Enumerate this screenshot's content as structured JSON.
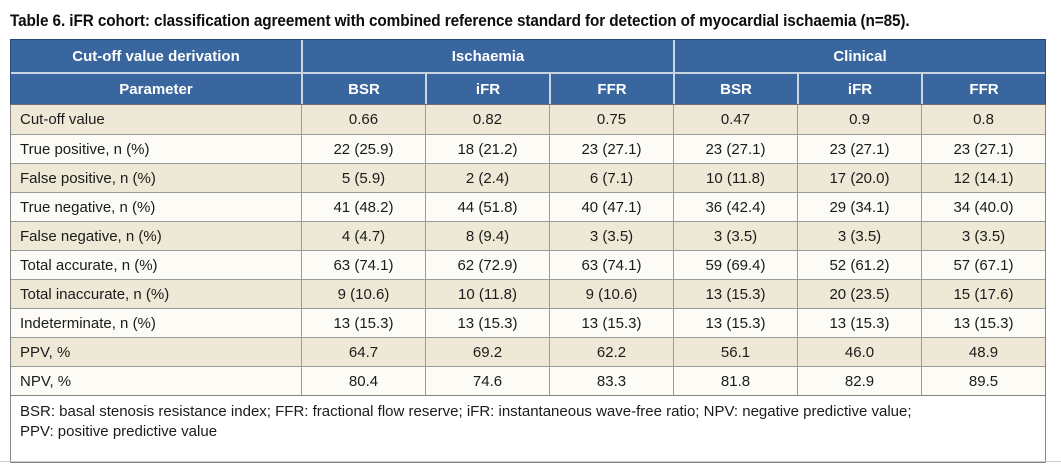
{
  "title": "Table 6. iFR cohort: classification agreement with combined reference standard for detection of myocardial ischaemia (n=85).",
  "colors": {
    "header_bg": "#39669e",
    "header_border": "#27497a",
    "header_separator": "#c9d4e3",
    "row_alt_bg": "#eee8d6",
    "row_plain_bg": "#fcfbf6",
    "grid_line": "#9b9b9b"
  },
  "table": {
    "header": {
      "derivation_label": "Cut-off value derivation",
      "groups": [
        {
          "label": "Ischaemia",
          "span": 3
        },
        {
          "label": "Clinical",
          "span": 3
        }
      ],
      "parameter_label": "Parameter",
      "columns": [
        "BSR",
        "iFR",
        "FFR",
        "BSR",
        "iFR",
        "FFR"
      ]
    },
    "rows": [
      {
        "parameter": "Cut-off value",
        "values": [
          "0.66",
          "0.82",
          "0.75",
          "0.47",
          "0.9",
          "0.8"
        ]
      },
      {
        "parameter": "True positive, n (%)",
        "values": [
          "22 (25.9)",
          "18 (21.2)",
          "23 (27.1)",
          "23 (27.1)",
          "23 (27.1)",
          "23 (27.1)"
        ]
      },
      {
        "parameter": "False positive, n (%)",
        "values": [
          "5 (5.9)",
          "2 (2.4)",
          "6 (7.1)",
          "10 (11.8)",
          "17 (20.0)",
          "12 (14.1)"
        ]
      },
      {
        "parameter": "True negative, n (%)",
        "values": [
          "41 (48.2)",
          "44 (51.8)",
          "40 (47.1)",
          "36 (42.4)",
          "29 (34.1)",
          "34 (40.0)"
        ]
      },
      {
        "parameter": "False negative, n (%)",
        "values": [
          "4 (4.7)",
          "8 (9.4)",
          "3 (3.5)",
          "3 (3.5)",
          "3 (3.5)",
          "3 (3.5)"
        ]
      },
      {
        "parameter": "Total accurate, n (%)",
        "values": [
          "63 (74.1)",
          "62 (72.9)",
          "63 (74.1)",
          "59 (69.4)",
          "52 (61.2)",
          "57 (67.1)"
        ]
      },
      {
        "parameter": "Total inaccurate, n (%)",
        "values": [
          "9 (10.6)",
          "10 (11.8)",
          "9 (10.6)",
          "13 (15.3)",
          "20 (23.5)",
          "15 (17.6)"
        ]
      },
      {
        "parameter": "Indeterminate, n (%)",
        "values": [
          "13 (15.3)",
          "13 (15.3)",
          "13 (15.3)",
          "13 (15.3)",
          "13 (15.3)",
          "13 (15.3)"
        ]
      },
      {
        "parameter": "PPV, %",
        "values": [
          "64.7",
          "69.2",
          "62.2",
          "56.1",
          "46.0",
          "48.9"
        ]
      },
      {
        "parameter": "NPV, %",
        "values": [
          "80.4",
          "74.6",
          "83.3",
          "81.8",
          "82.9",
          "89.5"
        ]
      }
    ],
    "footnote_lines": [
      "BSR: basal stenosis resistance index; FFR: fractional flow reserve; iFR: instantaneous wave-free ratio; NPV: negative predictive value;",
      "PPV: positive predictive value"
    ]
  }
}
